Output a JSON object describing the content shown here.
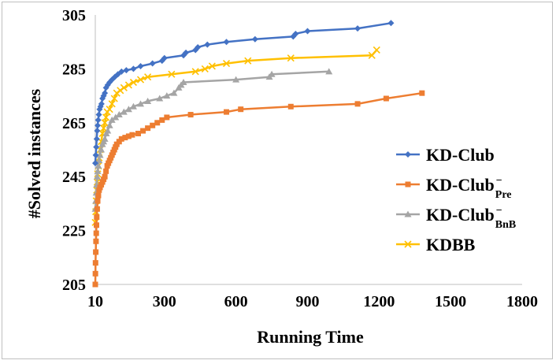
{
  "chart_data": {
    "type": "line",
    "title": "",
    "xlabel": "Running Time",
    "ylabel": "#Solved instances",
    "xlim": [
      10,
      1800
    ],
    "ylim": [
      205,
      305
    ],
    "xticks": [
      "10",
      "300",
      "600",
      "900",
      "1200",
      "1500",
      "1800"
    ],
    "xtick_values": [
      10,
      300,
      600,
      900,
      1200,
      1500,
      1800
    ],
    "yticks": [
      "205",
      "225",
      "245",
      "265",
      "285",
      "305"
    ],
    "ytick_values": [
      205,
      225,
      245,
      265,
      285,
      305
    ],
    "grid": false,
    "legend_position": "right",
    "series": [
      {
        "name": "KD-Club",
        "name_base": "KD-Club",
        "name_sup": "",
        "name_sub": "",
        "color": "#4472C4",
        "marker": "diamond",
        "x": [
          10,
          12,
          14,
          16,
          18,
          20,
          22,
          25,
          28,
          32,
          36,
          40,
          45,
          50,
          55,
          62,
          70,
          80,
          92,
          105,
          120,
          140,
          170,
          200,
          250,
          290,
          300,
          380,
          390,
          430,
          440,
          480,
          560,
          680,
          840,
          850,
          900,
          1110,
          1250
        ],
        "y": [
          250,
          253,
          256,
          259,
          262,
          264,
          266,
          268,
          270,
          271,
          272,
          274,
          275,
          276,
          278,
          279,
          280,
          281,
          282,
          283,
          284,
          284.5,
          285,
          286,
          287,
          288,
          289,
          290,
          291,
          292,
          293,
          294,
          295,
          296,
          297,
          298,
          299,
          300,
          302
        ]
      },
      {
        "name": "KD-Club−Pre",
        "name_base": "KD-Club",
        "name_sup": "−",
        "name_sub": "Pre",
        "color": "#ED7D31",
        "marker": "square",
        "x": [
          10,
          10.5,
          11,
          12,
          13,
          14,
          15,
          16,
          18,
          20,
          23,
          26,
          30,
          35,
          40,
          45,
          50,
          55,
          60,
          65,
          70,
          75,
          80,
          85,
          90,
          95,
          100,
          110,
          120,
          135,
          150,
          165,
          190,
          210,
          230,
          250,
          270,
          290,
          310,
          410,
          560,
          620,
          830,
          1110,
          1230,
          1380
        ],
        "y": [
          205,
          209,
          213,
          217,
          221,
          224,
          227,
          230,
          233,
          236,
          238,
          240,
          241,
          242,
          243,
          244,
          245,
          247,
          249,
          250,
          251,
          252,
          253,
          254,
          255,
          256,
          257,
          258,
          259,
          259.5,
          260,
          260.5,
          261,
          262,
          263,
          264,
          265,
          266,
          267,
          268,
          269,
          270,
          271,
          272,
          274,
          276
        ]
      },
      {
        "name": "KD-Club−BnB",
        "name_base": "KD-Club",
        "name_sup": "−",
        "name_sub": "BnB",
        "color": "#A5A5A5",
        "marker": "triangle",
        "x": [
          10,
          12,
          14,
          16,
          18,
          20,
          23,
          26,
          30,
          35,
          40,
          45,
          50,
          56,
          62,
          70,
          80,
          95,
          110,
          130,
          150,
          170,
          200,
          230,
          280,
          310,
          340,
          360,
          370,
          380,
          600,
          740,
          750,
          990
        ],
        "y": [
          233,
          236,
          239,
          242,
          245,
          247,
          249,
          251,
          253,
          255,
          257,
          258,
          259,
          261,
          262,
          264,
          266,
          267,
          268,
          269,
          270,
          271,
          272,
          273,
          274,
          275,
          276,
          278,
          279,
          280,
          281,
          282,
          283,
          284
        ]
      },
      {
        "name": "KDBB",
        "name_base": "KDBB",
        "name_sup": "",
        "name_sub": "",
        "color": "#FFC000",
        "marker": "x",
        "x": [
          10,
          12,
          14,
          16,
          18,
          20,
          23,
          26,
          30,
          35,
          40,
          45,
          50,
          55,
          60,
          70,
          80,
          90,
          100,
          115,
          130,
          150,
          170,
          200,
          230,
          330,
          430,
          470,
          500,
          560,
          650,
          830,
          1170,
          1190
        ],
        "y": [
          228,
          232,
          236,
          240,
          243,
          246,
          249,
          252,
          255,
          258,
          261,
          263,
          265,
          267,
          269,
          270,
          272,
          274,
          276,
          277,
          278,
          279,
          280,
          281,
          282,
          283,
          284,
          285,
          286,
          287,
          288,
          289,
          290,
          292
        ]
      }
    ]
  }
}
